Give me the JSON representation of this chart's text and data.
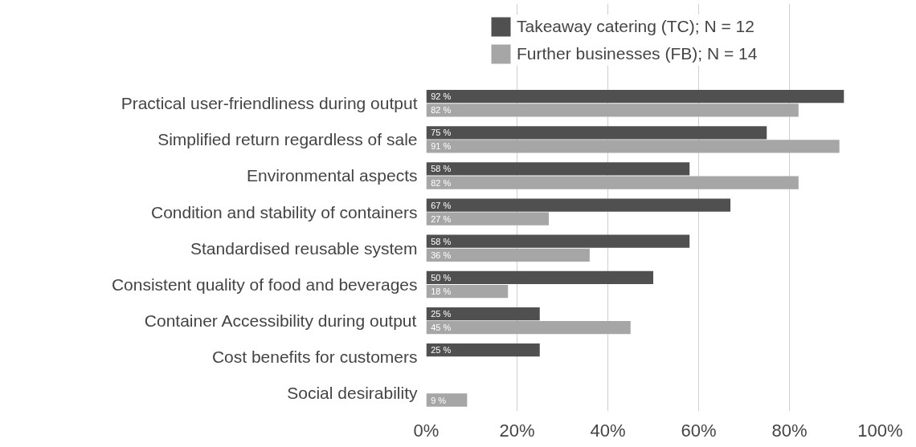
{
  "chart_data": {
    "type": "bar",
    "orientation": "horizontal",
    "categories": [
      "Practical user-friendliness during output",
      "Simplified return regardless of sale",
      "Environmental aspects",
      "Condition and stability of containers",
      "Standardised reusable system",
      "Consistent quality of food and beverages",
      "Container Accessibility during output",
      "Cost benefits for customers",
      "Social desirability"
    ],
    "series": [
      {
        "name": "Takeaway catering (TC); N = 12",
        "color": "#505050",
        "values": [
          92,
          75,
          58,
          67,
          58,
          50,
          25,
          25,
          null
        ],
        "value_labels": [
          "92 %",
          "75 %",
          "58 %",
          "67 %",
          "58 %",
          "50 %",
          "25 %",
          "25 %",
          null
        ]
      },
      {
        "name": "Further businesses (FB); N = 14",
        "color": "#a6a6a6",
        "values": [
          82,
          91,
          82,
          27,
          36,
          18,
          45,
          null,
          9
        ],
        "value_labels": [
          "82 %",
          "91 %",
          "82 %",
          "27 %",
          "36 %",
          "18 %",
          "45 %",
          null,
          "9 %"
        ]
      }
    ],
    "xlim": [
      0,
      100
    ],
    "xticks": [
      {
        "value": 0,
        "label": "0%"
      },
      {
        "value": 20,
        "label": "20%"
      },
      {
        "value": 40,
        "label": "40%"
      },
      {
        "value": 60,
        "label": "60%"
      },
      {
        "value": 80,
        "label": "80%"
      },
      {
        "value": 100,
        "label": "100%"
      }
    ],
    "grid": "x",
    "legend": "top"
  }
}
